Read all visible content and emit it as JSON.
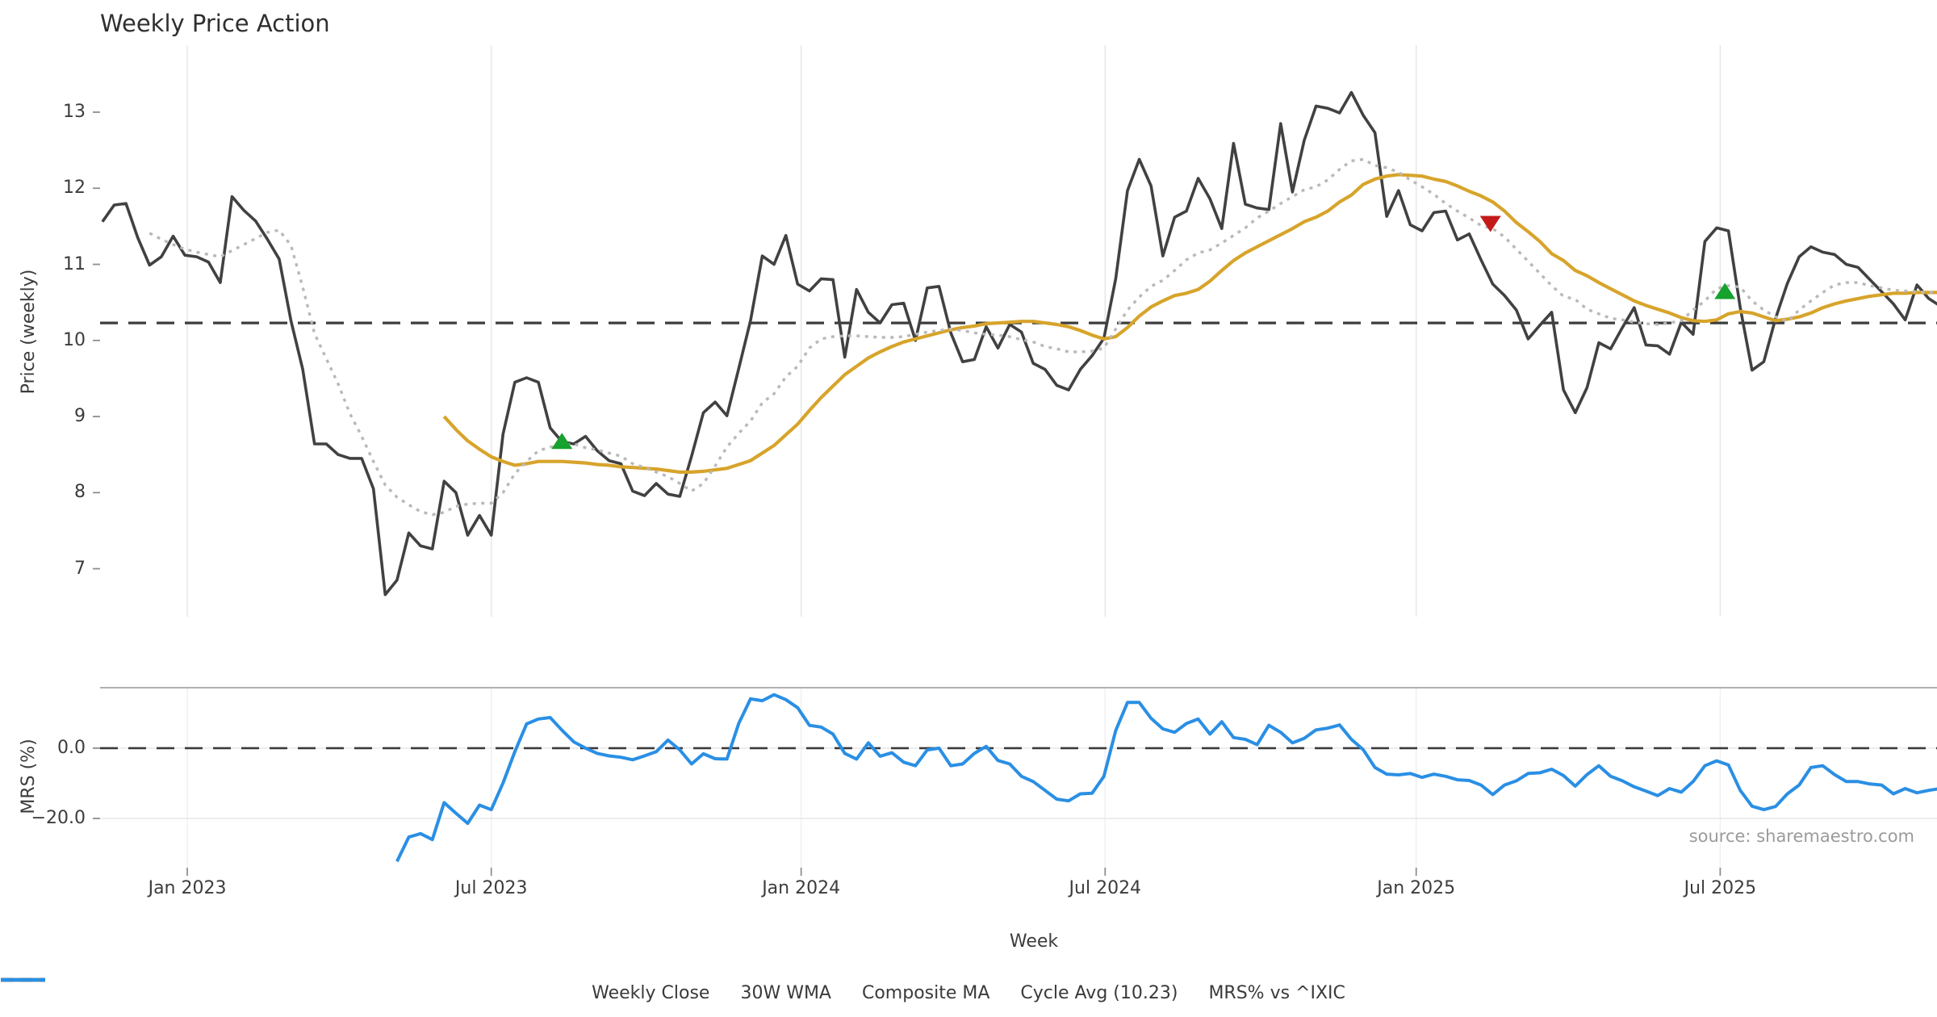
{
  "title": "Weekly Price Action",
  "source": "source: sharemaestro.com",
  "legend": [
    {
      "label": "Weekly Close",
      "color": "#3f3f3f",
      "style": "solid"
    },
    {
      "label": "30W WMA",
      "color": "#d7a42b",
      "style": "solid"
    },
    {
      "label": "Composite MA",
      "color": "#b9b9b9",
      "style": "dotted"
    },
    {
      "label": "Cycle Avg (10.23)",
      "color": "#3f3f3f",
      "style": "dashed"
    },
    {
      "label": "MRS% vs ^IXIC",
      "color": "#2a8fe4",
      "style": "solid"
    }
  ],
  "chart_data": {
    "type": "line",
    "title": "Weekly Price Action",
    "xlabel": "Week",
    "x_unit": "weeks since first data point (Nov 2022), weekly interval",
    "xlim": [
      -0.2,
      155.7
    ],
    "xticks": [
      {
        "pos": 7.2,
        "label": "Jan 2023"
      },
      {
        "pos": 33.0,
        "label": "Jul 2023"
      },
      {
        "pos": 59.3,
        "label": "Jan 2024"
      },
      {
        "pos": 85.1,
        "label": "Jul 2024"
      },
      {
        "pos": 111.5,
        "label": "Jan 2025"
      },
      {
        "pos": 137.3,
        "label": "Jul 2025"
      }
    ],
    "panels": [
      {
        "name": "price",
        "ylabel": "Price (weekly)",
        "ylim": [
          6.37,
          13.88
        ],
        "yticks": [
          {
            "pos": 7,
            "label": "7"
          },
          {
            "pos": 8,
            "label": "8"
          },
          {
            "pos": 9,
            "label": "9"
          },
          {
            "pos": 10,
            "label": "10"
          },
          {
            "pos": 11,
            "label": "11"
          },
          {
            "pos": 12,
            "label": "12"
          },
          {
            "pos": 13,
            "label": "13"
          }
        ],
        "hlines": [
          {
            "value": 10.23,
            "name": "Cycle Avg (10.23)",
            "style": "dashed",
            "color": "#3d3d3d",
            "width": 3.2
          }
        ],
        "series": [
          {
            "name": "Weekly Close",
            "color": "#414141",
            "style": "solid",
            "width": 3.6,
            "x0": 0,
            "values": [
              11.56,
              11.78,
              11.8,
              11.35,
              10.99,
              11.1,
              11.37,
              11.12,
              11.1,
              11.03,
              10.76,
              11.89,
              11.71,
              11.57,
              11.33,
              11.07,
              10.26,
              9.62,
              8.64,
              8.64,
              8.5,
              8.45,
              8.45,
              8.05,
              6.66,
              6.85,
              7.47,
              7.3,
              7.26,
              8.15,
              8.0,
              7.44,
              7.7,
              7.44,
              8.77,
              9.45,
              9.51,
              9.45,
              8.85,
              8.67,
              8.64,
              8.74,
              8.55,
              8.42,
              8.38,
              8.02,
              7.96,
              8.12,
              7.98,
              7.95,
              8.48,
              9.05,
              9.19,
              9.01,
              9.63,
              10.26,
              11.11,
              11.0,
              11.38,
              10.74,
              10.65,
              10.81,
              10.8,
              9.78,
              10.67,
              10.37,
              10.23,
              10.47,
              10.49,
              10.0,
              10.69,
              10.71,
              10.1,
              9.72,
              9.75,
              10.18,
              9.9,
              10.21,
              10.11,
              9.7,
              9.62,
              9.41,
              9.35,
              9.62,
              9.8,
              10.03,
              10.81,
              11.97,
              12.38,
              12.03,
              11.11,
              11.62,
              11.7,
              12.13,
              11.86,
              11.47,
              12.59,
              11.79,
              11.74,
              11.72,
              12.85,
              11.95,
              12.63,
              13.08,
              13.05,
              12.99,
              13.26,
              12.96,
              12.73,
              11.63,
              11.97,
              11.52,
              11.44,
              11.68,
              11.7,
              11.32,
              11.4,
              11.06,
              10.74,
              10.59,
              10.4,
              10.02,
              10.2,
              10.37,
              9.35,
              9.05,
              9.38,
              9.97,
              9.89,
              10.17,
              10.43,
              9.94,
              9.93,
              9.82,
              10.24,
              10.08,
              11.3,
              11.48,
              11.44,
              10.43,
              9.61,
              9.72,
              10.29,
              10.75,
              11.1,
              11.23,
              11.16,
              11.13,
              11.0,
              10.96,
              10.8,
              10.64,
              10.48,
              10.27,
              10.73,
              10.55,
              10.45
            ]
          },
          {
            "name": "30W WMA",
            "color": "#d7a42b",
            "style": "solid",
            "width": 4.2,
            "x0": 29,
            "values": [
              9.0,
              8.83,
              8.68,
              8.57,
              8.47,
              8.41,
              8.36,
              8.38,
              8.41,
              8.41,
              8.41,
              8.4,
              8.39,
              8.37,
              8.36,
              8.34,
              8.33,
              8.32,
              8.31,
              8.29,
              8.27,
              8.27,
              8.28,
              8.3,
              8.32,
              8.37,
              8.42,
              8.52,
              8.62,
              8.76,
              8.9,
              9.08,
              9.25,
              9.4,
              9.55,
              9.66,
              9.77,
              9.85,
              9.92,
              9.98,
              10.02,
              10.06,
              10.1,
              10.14,
              10.17,
              10.19,
              10.22,
              10.23,
              10.24,
              10.25,
              10.25,
              10.23,
              10.21,
              10.18,
              10.13,
              10.07,
              10.02,
              10.05,
              10.17,
              10.32,
              10.44,
              10.52,
              10.59,
              10.62,
              10.67,
              10.78,
              10.92,
              11.05,
              11.15,
              11.23,
              11.31,
              11.39,
              11.47,
              11.56,
              11.62,
              11.7,
              11.82,
              11.91,
              12.05,
              12.12,
              12.16,
              12.18,
              12.17,
              12.16,
              12.12,
              12.09,
              12.03,
              11.96,
              11.9,
              11.82,
              11.7,
              11.55,
              11.43,
              11.3,
              11.14,
              11.05,
              10.92,
              10.85,
              10.76,
              10.68,
              10.6,
              10.52,
              10.46,
              10.41,
              10.36,
              10.3,
              10.26,
              10.25,
              10.27,
              10.35,
              10.38,
              10.36,
              10.31,
              10.26,
              10.28,
              10.31,
              10.36,
              10.43,
              10.48,
              10.52,
              10.55,
              10.58,
              10.6,
              10.62,
              10.62,
              10.63,
              10.63,
              10.63
            ]
          },
          {
            "name": "Composite MA",
            "color": "#b9b9b9",
            "style": "dotted",
            "width": 3.4,
            "x0": 4,
            "values": [
              11.41,
              11.33,
              11.26,
              11.2,
              11.16,
              11.13,
              11.1,
              11.18,
              11.26,
              11.34,
              11.42,
              11.45,
              11.25,
              10.7,
              10.09,
              9.76,
              9.43,
              9.04,
              8.74,
              8.41,
              8.1,
              7.94,
              7.84,
              7.75,
              7.71,
              7.74,
              7.82,
              7.85,
              7.86,
              7.86,
              8.0,
              8.25,
              8.41,
              8.55,
              8.6,
              8.62,
              8.64,
              8.59,
              8.56,
              8.52,
              8.48,
              8.38,
              8.33,
              8.27,
              8.21,
              8.12,
              8.02,
              8.12,
              8.35,
              8.6,
              8.78,
              8.94,
              9.18,
              9.3,
              9.52,
              9.66,
              9.9,
              10.02,
              10.05,
              10.06,
              10.06,
              10.05,
              10.04,
              10.04,
              10.05,
              10.08,
              10.11,
              10.13,
              10.15,
              10.13,
              10.1,
              10.08,
              10.07,
              10.05,
              10.01,
              9.98,
              9.92,
              9.89,
              9.85,
              9.85,
              9.86,
              9.9,
              10.15,
              10.4,
              10.57,
              10.71,
              10.79,
              10.92,
              11.06,
              11.15,
              11.19,
              11.28,
              11.38,
              11.48,
              11.61,
              11.7,
              11.8,
              11.89,
              11.98,
              12.02,
              12.11,
              12.25,
              12.36,
              12.38,
              12.3,
              12.27,
              12.21,
              12.11,
              12.02,
              11.92,
              11.8,
              11.7,
              11.61,
              11.51,
              11.47,
              11.36,
              11.2,
              11.04,
              10.88,
              10.72,
              10.58,
              10.54,
              10.41,
              10.35,
              10.29,
              10.27,
              10.24,
              10.22,
              10.21,
              10.23,
              10.26,
              10.4,
              10.52,
              10.68,
              10.72,
              10.7,
              10.52,
              10.4,
              10.31,
              10.25,
              10.4,
              10.52,
              10.63,
              10.73,
              10.76,
              10.76,
              10.72,
              10.69,
              10.66,
              10.65,
              10.64,
              10.63,
              10.63
            ]
          }
        ],
        "markers": [
          {
            "shape": "triangle-up",
            "name": "buy-signal",
            "color": "#17a12d",
            "x": 39.0,
            "y": 8.68
          },
          {
            "shape": "triangle-down",
            "name": "sell-signal",
            "color": "#c41a1a",
            "x": 117.8,
            "y": 11.53
          },
          {
            "shape": "triangle-up",
            "name": "buy-signal",
            "color": "#17a12d",
            "x": 137.7,
            "y": 10.65
          }
        ]
      },
      {
        "name": "mrs",
        "ylabel": "MRS (%)",
        "ylim": [
          -34.0,
          17.2
        ],
        "yticks": [
          {
            "pos": 0,
            "label": "0.0"
          },
          {
            "pos": -20,
            "label": "−20.0"
          }
        ],
        "hlines": [
          {
            "value": 0,
            "name": "zero line",
            "style": "dashed",
            "color": "#3a3a3a",
            "width": 2.6
          }
        ],
        "gridlines_h": [
          0,
          -20
        ],
        "series": [
          {
            "name": "MRS% vs ^IXIC",
            "color": "#2a8fe4",
            "style": "solid",
            "width": 4.0,
            "x0": 25,
            "values": [
              -32.2,
              -25.3,
              -24.3,
              -26.0,
              -15.5,
              -18.5,
              -21.4,
              -16.2,
              -17.5,
              -9.9,
              -1.0,
              6.9,
              8.3,
              8.7,
              5.1,
              1.8,
              0.0,
              -1.5,
              -2.2,
              -2.6,
              -3.3,
              -2.2,
              -1.0,
              2.3,
              -0.5,
              -4.5,
              -1.6,
              -3.0,
              -3.1,
              7.0,
              14.0,
              13.5,
              15.2,
              13.8,
              11.5,
              6.5,
              6.0,
              4.0,
              -1.5,
              -3.1,
              1.5,
              -2.3,
              -1.3,
              -4.0,
              -5.0,
              -0.5,
              0.0,
              -5.0,
              -4.5,
              -1.5,
              0.5,
              -3.5,
              -4.5,
              -8.0,
              -9.5,
              -12.0,
              -14.5,
              -15.0,
              -13.0,
              -12.8,
              -8.0,
              5.0,
              13.0,
              13.0,
              8.5,
              5.5,
              4.5,
              7.0,
              8.3,
              4.0,
              7.5,
              3.0,
              2.5,
              1.0,
              6.5,
              4.5,
              1.5,
              2.8,
              5.2,
              5.7,
              6.6,
              2.5,
              -0.4,
              -5.5,
              -7.4,
              -7.6,
              -7.2,
              -8.3,
              -7.4,
              -8.0,
              -9.0,
              -9.2,
              -10.5,
              -13.2,
              -10.5,
              -9.3,
              -7.2,
              -7.0,
              -6.0,
              -7.8,
              -10.8,
              -7.5,
              -5.0,
              -8.0,
              -9.3,
              -11.0,
              -12.2,
              -13.5,
              -11.5,
              -12.5,
              -9.5,
              -5.0,
              -3.6,
              -4.8,
              -12.0,
              -16.5,
              -17.5,
              -16.6,
              -13.0,
              -10.5,
              -5.5,
              -5.0,
              -7.5,
              -9.5,
              -9.5,
              -10.2,
              -10.5,
              -13.0,
              -11.5,
              -12.7,
              -12.0,
              -11.5
            ]
          }
        ]
      }
    ],
    "grid": "vertical light gridlines at x ticks; horizontal light gridlines at 0 and -20 in MRS panel",
    "legend_position": "bottom center"
  }
}
